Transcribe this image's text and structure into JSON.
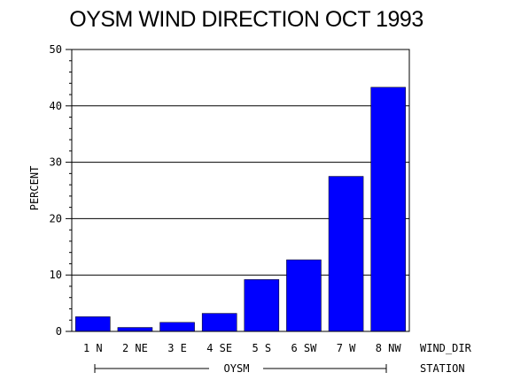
{
  "chart_data": {
    "type": "bar",
    "title": "OYSM WIND DIRECTION OCT 1993",
    "ylabel": "PERCENT",
    "xlabel": "WIND_DIR",
    "group_label": "OYSM",
    "group_axis_label": "STATION",
    "categories": [
      "1 N",
      "2 NE",
      "3 E",
      "4 SE",
      "5 S",
      "6 SW",
      "7 W",
      "8 NW"
    ],
    "values": [
      2.6,
      0.7,
      1.6,
      3.2,
      9.2,
      12.7,
      27.5,
      43.3
    ],
    "ylim": [
      0,
      50
    ],
    "yticks": [
      "0",
      "10",
      "20",
      "30",
      "40",
      "50"
    ],
    "grid": true,
    "bar_color": "#0000ff",
    "legend": "none"
  }
}
